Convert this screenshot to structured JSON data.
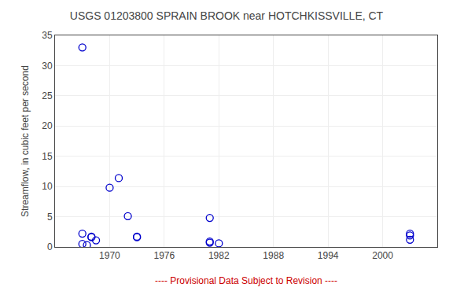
{
  "chart_data": {
    "type": "scatter",
    "title": "USGS 01203800 SPRAIN BROOK near HOTCHKISSVILLE, CT",
    "y_label": "Streamflow, in cubic feet per second",
    "x": [
      1967,
      1967,
      1967,
      1968,
      1968,
      1967.5,
      1968.5,
      1970,
      1971,
      1972,
      1973,
      1973,
      1981,
      1981,
      1981,
      1982,
      2003,
      2003,
      2003
    ],
    "values": [
      33.0,
      2.2,
      0.5,
      1.7,
      1.6,
      0.3,
      1.1,
      9.8,
      11.4,
      5.1,
      1.7,
      1.6,
      4.8,
      0.9,
      0.7,
      0.6,
      2.2,
      1.9,
      1.2
    ],
    "color": "#0000cc",
    "marker": "circle-open",
    "xlim": [
      1964,
      2006
    ],
    "ylim": [
      0,
      35
    ],
    "xticks": [
      1970,
      1976,
      1982,
      1988,
      1994,
      2000
    ],
    "yticks": [
      0,
      5,
      10,
      15,
      20,
      25,
      30,
      35
    ],
    "grid": true,
    "annotations": [
      {
        "text": "---- Provisional Data Subject to Revision ----",
        "color": "#cc0000"
      }
    ]
  }
}
